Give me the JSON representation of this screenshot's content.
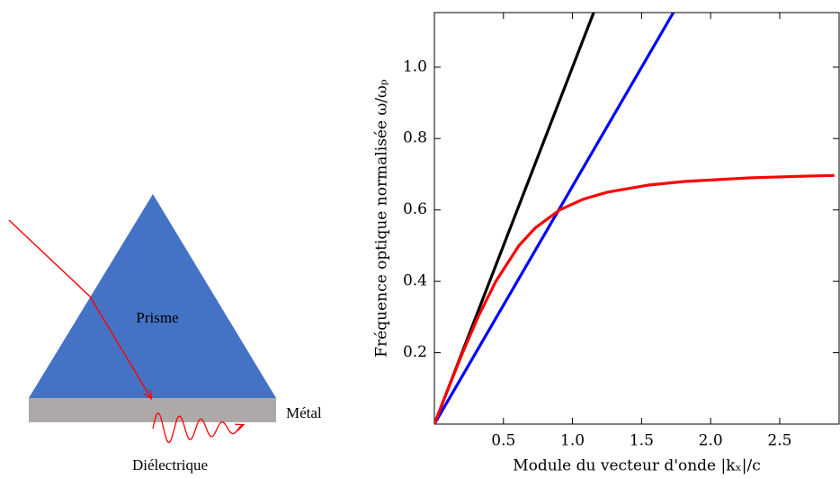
{
  "diagram": {
    "prism_label": "Prisme",
    "metal_label": "Métal",
    "dielectric_label": "Diélectrique"
  },
  "chart_data": {
    "type": "line",
    "xlabel": "Module du vecteur d'onde |kₓ|/c",
    "ylabel": "Fréquence optique normalisée ω/ωₚ",
    "xlim": [
      0,
      2.93
    ],
    "ylim": [
      0,
      1.153
    ],
    "xticks": [
      0.5,
      {
        "value": 1,
        "label": "1.0"
      },
      1.5,
      {
        "value": 2,
        "label": "2.0"
      },
      2.5
    ],
    "yticks": [
      0.2,
      0.4,
      0.6,
      0.8,
      {
        "value": 1,
        "label": "1.0"
      }
    ],
    "series": [
      {
        "color": "#000000",
        "x": [
          0,
          1.153
        ],
        "values": [
          0,
          1.153
        ]
      },
      {
        "color": "#0000ff",
        "x": [
          0,
          1.73
        ],
        "values": [
          0,
          1.153
        ]
      },
      {
        "color": "#ff0000",
        "x": [
          0,
          0.0501,
          0.1005,
          0.2043,
          0.316,
          0.4446,
          0.612,
          0.731,
          0.907,
          1.077,
          1.255,
          1.556,
          1.818,
          2.284,
          2.71,
          2.896
        ],
        "values": [
          0,
          0.05,
          0.1,
          0.2,
          0.3,
          0.4,
          0.5,
          0.55,
          0.6,
          0.63,
          0.65,
          0.67,
          0.68,
          0.69,
          0.695,
          0.6965
        ]
      }
    ]
  }
}
